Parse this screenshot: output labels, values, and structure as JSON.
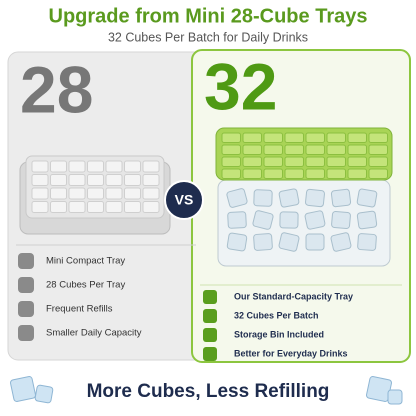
{
  "header": {
    "title": "Upgrade from Mini 28-Cube Trays",
    "subtitle": "32 Cubes Per Batch for Daily Drinks"
  },
  "left": {
    "number": "28",
    "features": [
      "Mini Compact Tray",
      "28 Cubes Per Tray",
      "Frequent Refills",
      "Smaller Daily Capacity"
    ]
  },
  "vs": "VS",
  "right": {
    "number": "32",
    "features": [
      "Our Standard-Capacity Tray",
      "32 Cubes Per Batch",
      "Storage Bin Included",
      "Better for Everyday Drinks"
    ]
  },
  "footer": {
    "slogan": "More Cubes, Less Refilling"
  }
}
